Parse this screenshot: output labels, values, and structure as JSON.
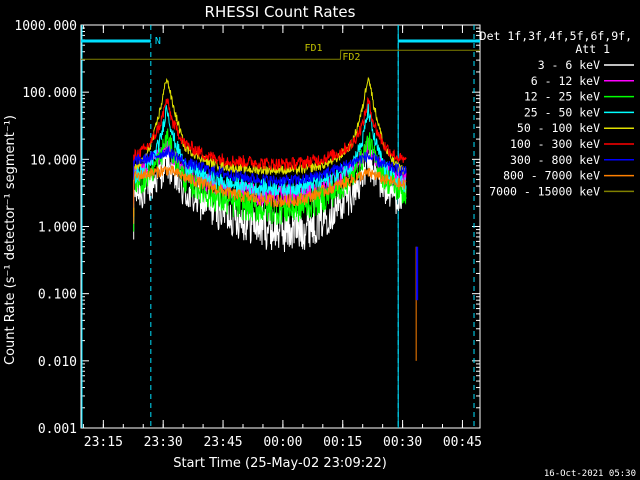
{
  "chart_data": {
    "type": "line",
    "title": "RHESSI Count Rates",
    "xlabel": "Start Time (25-May-02 23:09:22)",
    "ylabel": "Count Rate (s⁻¹ detector⁻¹ segment⁻¹)",
    "y_scale": "log",
    "ylim": [
      0.001,
      1000
    ],
    "x_unit": "minutes since 23:09:22",
    "xlim": [
      0,
      100
    ],
    "y_ticks": [
      "1000.000",
      "100.000",
      "10.000",
      "1.000",
      "0.100",
      "0.010",
      "0.001"
    ],
    "x_ticks": [
      {
        "label": "23:15",
        "x": 5.6
      },
      {
        "label": "23:30",
        "x": 20.6
      },
      {
        "label": "23:45",
        "x": 35.6
      },
      {
        "label": "00:00",
        "x": 50.6
      },
      {
        "label": "00:15",
        "x": 65.6
      },
      {
        "label": "00:30",
        "x": 80.6
      },
      {
        "label": "00:45",
        "x": 95.6
      }
    ],
    "legend": {
      "title_lines": [
        "Det 1f,3f,4f,5f,6f,9f,",
        "Att 1"
      ],
      "placement": "right"
    },
    "series": [
      {
        "name": "3 - 6 keV",
        "color": "#ffffff",
        "values": [
          [
            13.2,
            3.2
          ],
          [
            16,
            3.5
          ],
          [
            18,
            4.5
          ],
          [
            20,
            6.5
          ],
          [
            21.5,
            9.5
          ],
          [
            23,
            6
          ],
          [
            26,
            3.2
          ],
          [
            32,
            2.1
          ],
          [
            38,
            1.5
          ],
          [
            44,
            1.1
          ],
          [
            48,
            0.95
          ],
          [
            52,
            0.9
          ],
          [
            56,
            1.0
          ],
          [
            60,
            1.3
          ],
          [
            64,
            2.0
          ],
          [
            68,
            3.2
          ],
          [
            70.5,
            5.5
          ],
          [
            72,
            9
          ],
          [
            73.5,
            6.5
          ],
          [
            76,
            3.8
          ],
          [
            79,
            3.0
          ],
          [
            81.6,
            2.6
          ]
        ]
      },
      {
        "name": "6 - 12 keV",
        "color": "#ff00ff",
        "values": [
          [
            13.2,
            6.0
          ],
          [
            16,
            7
          ],
          [
            18,
            9
          ],
          [
            20,
            11
          ],
          [
            21.5,
            16
          ],
          [
            23,
            11
          ],
          [
            26,
            6.2
          ],
          [
            32,
            4.3
          ],
          [
            38,
            3.4
          ],
          [
            44,
            3.0
          ],
          [
            48,
            2.9
          ],
          [
            52,
            2.9
          ],
          [
            56,
            3.0
          ],
          [
            60,
            3.6
          ],
          [
            64,
            4.7
          ],
          [
            68,
            6.8
          ],
          [
            70.5,
            11
          ],
          [
            72,
            16
          ],
          [
            73.5,
            11
          ],
          [
            76,
            7.2
          ],
          [
            79,
            5.5
          ],
          [
            81.6,
            5.0
          ]
        ]
      },
      {
        "name": "12 - 25 keV",
        "color": "#00ff00",
        "values": [
          [
            13.2,
            4.2
          ],
          [
            16,
            5
          ],
          [
            18,
            7
          ],
          [
            20,
            11
          ],
          [
            21.5,
            22
          ],
          [
            23,
            12
          ],
          [
            26,
            5
          ],
          [
            32,
            3.0
          ],
          [
            38,
            2.2
          ],
          [
            44,
            1.9
          ],
          [
            48,
            1.8
          ],
          [
            52,
            1.8
          ],
          [
            56,
            2.0
          ],
          [
            60,
            2.5
          ],
          [
            64,
            3.4
          ],
          [
            68,
            5.5
          ],
          [
            70.5,
            10
          ],
          [
            72,
            19
          ],
          [
            73.5,
            11
          ],
          [
            76,
            5.3
          ],
          [
            79,
            3.8
          ],
          [
            81.6,
            3.0
          ]
        ]
      },
      {
        "name": "25 - 50 keV",
        "color": "#00ffff",
        "values": [
          [
            13.2,
            5.5
          ],
          [
            16,
            7
          ],
          [
            18,
            10
          ],
          [
            20,
            20
          ],
          [
            21.5,
            62
          ],
          [
            23,
            22
          ],
          [
            26,
            8
          ],
          [
            32,
            5.2
          ],
          [
            38,
            4.2
          ],
          [
            44,
            3.8
          ],
          [
            48,
            3.8
          ],
          [
            52,
            3.8
          ],
          [
            56,
            4.0
          ],
          [
            60,
            4.6
          ],
          [
            64,
            5.8
          ],
          [
            68,
            8.5
          ],
          [
            70.5,
            18
          ],
          [
            72,
            55
          ],
          [
            73.5,
            20
          ],
          [
            76,
            7.5
          ],
          [
            79,
            5.0
          ],
          [
            81.6,
            4.2
          ]
        ]
      },
      {
        "name": "50 - 100 keV",
        "color": "#e0e000",
        "values": [
          [
            13.2,
            7.0
          ],
          [
            16,
            10
          ],
          [
            18,
            20
          ],
          [
            20,
            60
          ],
          [
            21.5,
            170
          ],
          [
            23,
            65
          ],
          [
            26,
            15
          ],
          [
            32,
            9.0
          ],
          [
            38,
            7.5
          ],
          [
            44,
            7.0
          ],
          [
            48,
            7.0
          ],
          [
            52,
            7.0
          ],
          [
            56,
            7.2
          ],
          [
            60,
            8.0
          ],
          [
            64,
            10
          ],
          [
            68,
            17
          ],
          [
            70.5,
            55
          ],
          [
            72,
            180
          ],
          [
            73.5,
            60
          ],
          [
            76,
            15
          ],
          [
            79,
            8.0
          ],
          [
            81.6,
            6.5
          ]
        ]
      },
      {
        "name": "100 - 300 keV",
        "color": "#ff0000",
        "values": [
          [
            13.2,
            11
          ],
          [
            16,
            14
          ],
          [
            18,
            20
          ],
          [
            20,
            35
          ],
          [
            21.5,
            78
          ],
          [
            23,
            35
          ],
          [
            26,
            17
          ],
          [
            32,
            11
          ],
          [
            38,
            9.5
          ],
          [
            44,
            9.0
          ],
          [
            48,
            8.5
          ],
          [
            52,
            8.5
          ],
          [
            56,
            9.0
          ],
          [
            60,
            10
          ],
          [
            64,
            12
          ],
          [
            68,
            17
          ],
          [
            70.5,
            32
          ],
          [
            72,
            75
          ],
          [
            73.5,
            32
          ],
          [
            76,
            16
          ],
          [
            79,
            11
          ],
          [
            81.6,
            9.0
          ]
        ]
      },
      {
        "name": "300 - 800 keV",
        "color": "#0000ff",
        "values": [
          [
            13.2,
            9.5
          ],
          [
            16,
            10
          ],
          [
            18,
            11
          ],
          [
            20,
            12
          ],
          [
            21.5,
            13
          ],
          [
            23,
            12
          ],
          [
            26,
            9
          ],
          [
            32,
            7.0
          ],
          [
            38,
            5.8
          ],
          [
            44,
            5.1
          ],
          [
            48,
            4.8
          ],
          [
            52,
            4.8
          ],
          [
            56,
            5.0
          ],
          [
            60,
            5.8
          ],
          [
            64,
            7.2
          ],
          [
            68,
            9.0
          ],
          [
            70.5,
            10.5
          ],
          [
            72,
            11
          ],
          [
            73.5,
            10
          ],
          [
            76,
            8.2
          ],
          [
            79,
            7.2
          ],
          [
            81.6,
            6.4
          ]
        ]
      },
      {
        "name": "800 - 7000 keV",
        "color": "#ff8000",
        "values": [
          [
            13.2,
            5.5
          ],
          [
            16,
            6
          ],
          [
            18,
            6.3
          ],
          [
            20,
            6.6
          ],
          [
            21.5,
            7.0
          ],
          [
            23,
            6.6
          ],
          [
            26,
            5.4
          ],
          [
            32,
            4.0
          ],
          [
            38,
            3.0
          ],
          [
            44,
            2.6
          ],
          [
            48,
            2.4
          ],
          [
            52,
            2.4
          ],
          [
            56,
            2.6
          ],
          [
            60,
            3.2
          ],
          [
            64,
            4.0
          ],
          [
            68,
            5.0
          ],
          [
            70.5,
            5.8
          ],
          [
            72,
            6.2
          ],
          [
            73.5,
            5.9
          ],
          [
            76,
            5.0
          ],
          [
            79,
            4.4
          ],
          [
            81.6,
            4.0
          ]
        ]
      },
      {
        "name": "7000 - 15000 keV",
        "color": "#808000",
        "values": [
          [
            0,
            310
          ],
          [
            65,
            310
          ],
          [
            65.1,
            420
          ],
          [
            100,
            420
          ]
        ]
      }
    ],
    "annotations": [
      {
        "text": "N",
        "color": "#00e0ff"
      },
      {
        "text": "FD1",
        "color": "#c0c000"
      },
      {
        "text": "FD2",
        "color": "#c0c000"
      }
    ],
    "night_intervals": [
      [
        0,
        17.5
      ],
      [
        79.5,
        100
      ]
    ],
    "dashed_markers_x": [
      17.5,
      79.5,
      98.5
    ],
    "solid_markers_x": [
      0,
      79.5
    ],
    "datagap_x": [
      81.6,
      84
    ]
  },
  "timestamp": "16-Oct-2021 05:30"
}
